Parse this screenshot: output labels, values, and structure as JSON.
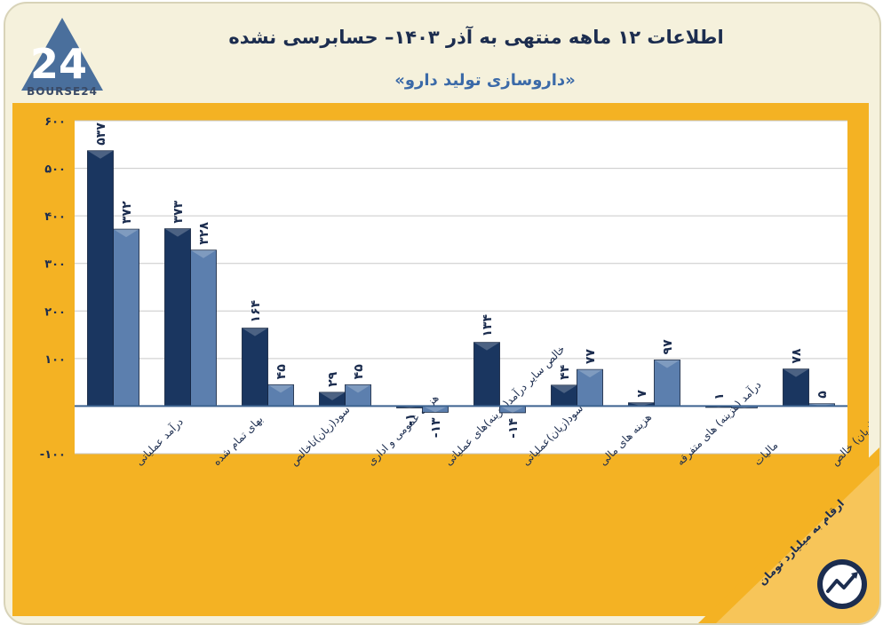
{
  "header": {
    "title": "اطلاعات ۱۲ ماهه منتهی به آذر ۱۴۰۳– حسابرسی نشده",
    "subtitle": "«داروسازی تولید دارو»",
    "logo_text": "BOURSE24",
    "logo_mark": "24"
  },
  "note": {
    "units": "ارقام به میلیارد تومان"
  },
  "colors": {
    "background": "#f5f1dc",
    "chart_frame": "#f4b223",
    "plot_area": "#ffffff",
    "series_dark": "#1a3660",
    "series_light": "#5c7fae",
    "text_dark": "#1c2d4f"
  },
  "icons": {
    "logo": "bourse24-logo-icon",
    "badge": "trend-chart-icon"
  },
  "chart_data": {
    "type": "bar",
    "categories": [
      "درآمد عملیاتی",
      "بهای تمام شده",
      "سود(زیان)ناخالص",
      "هزینه عمومی و اداری",
      "خالص سایر درآمد(هزینه)های عملیاتی",
      "سود(زیان)عملیاتی",
      "هزینه های مالی",
      "درآمد (هزینه) های متفرقه",
      "مالیات",
      "سود(زیان) خالص"
    ],
    "series": [
      {
        "values": [
          537,
          373,
          164,
          29,
          -1,
          134,
          44,
          7,
          1,
          78
        ],
        "labels": [
          "۵۳۷",
          "۳۷۳",
          "۱۶۴",
          "۲۹",
          "-۱",
          "۱۳۴",
          "۴۴",
          "۷",
          "۱",
          "۷۸"
        ]
      },
      {
        "values": [
          372,
          328,
          45,
          45,
          -13,
          -14,
          77,
          97,
          0,
          5
        ],
        "labels": [
          "۳۷۲",
          "۳۲۸",
          "۴۵",
          "۴۵",
          "-۱۳",
          "-۱۴",
          "۷۷",
          "۹۷",
          "",
          "۵"
        ]
      }
    ],
    "ylim": [
      -100,
      600
    ],
    "yticks": [
      -100,
      100,
      200,
      300,
      400,
      500,
      600
    ],
    "ytick_labels": [
      "-۱۰۰",
      "۱۰۰",
      "۲۰۰",
      "۳۰۰",
      "۴۰۰",
      "۵۰۰",
      "۶۰۰"
    ],
    "grid": true,
    "legend": "none"
  }
}
